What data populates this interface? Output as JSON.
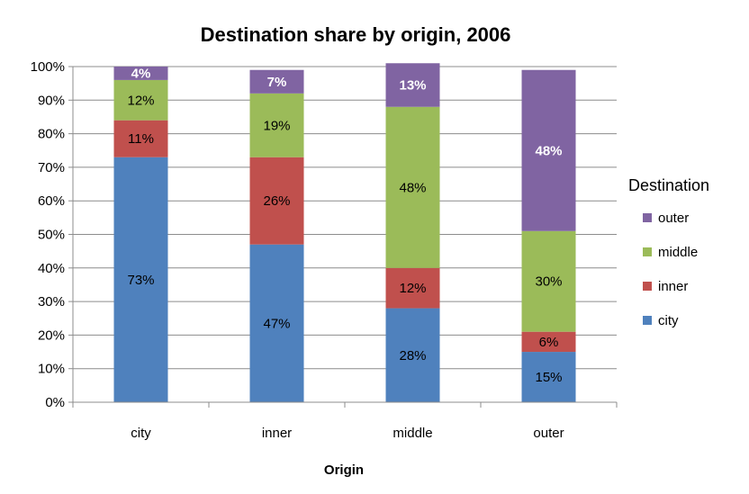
{
  "chart_data": {
    "type": "bar",
    "stacked": true,
    "title": "Destination share by origin, 2006",
    "xlabel": "Origin",
    "ylabel": "",
    "ylim": [
      0,
      100
    ],
    "y_ticks": [
      "0%",
      "10%",
      "20%",
      "30%",
      "40%",
      "50%",
      "60%",
      "70%",
      "80%",
      "90%",
      "100%"
    ],
    "grid": true,
    "legend_title": "Destination",
    "legend_position": "right",
    "categories": [
      "city",
      "inner",
      "middle",
      "outer"
    ],
    "series": [
      {
        "name": "city",
        "color": "#4F81BD",
        "values": [
          73,
          47,
          28,
          15
        ],
        "labels": [
          "73%",
          "47%",
          "28%",
          "15%"
        ]
      },
      {
        "name": "inner",
        "color": "#C0504D",
        "values": [
          11,
          26,
          12,
          6
        ],
        "labels": [
          "11%",
          "26%",
          "12%",
          "6%"
        ]
      },
      {
        "name": "middle",
        "color": "#9BBB59",
        "values": [
          12,
          19,
          48,
          30
        ],
        "labels": [
          "12%",
          "19%",
          "48%",
          "30%"
        ]
      },
      {
        "name": "outer",
        "color": "#8064A2",
        "values": [
          4,
          7,
          13,
          48
        ],
        "labels": [
          "4%",
          "7%",
          "13%",
          "48%"
        ]
      }
    ],
    "legend_order": [
      "outer",
      "middle",
      "inner",
      "city"
    ]
  }
}
